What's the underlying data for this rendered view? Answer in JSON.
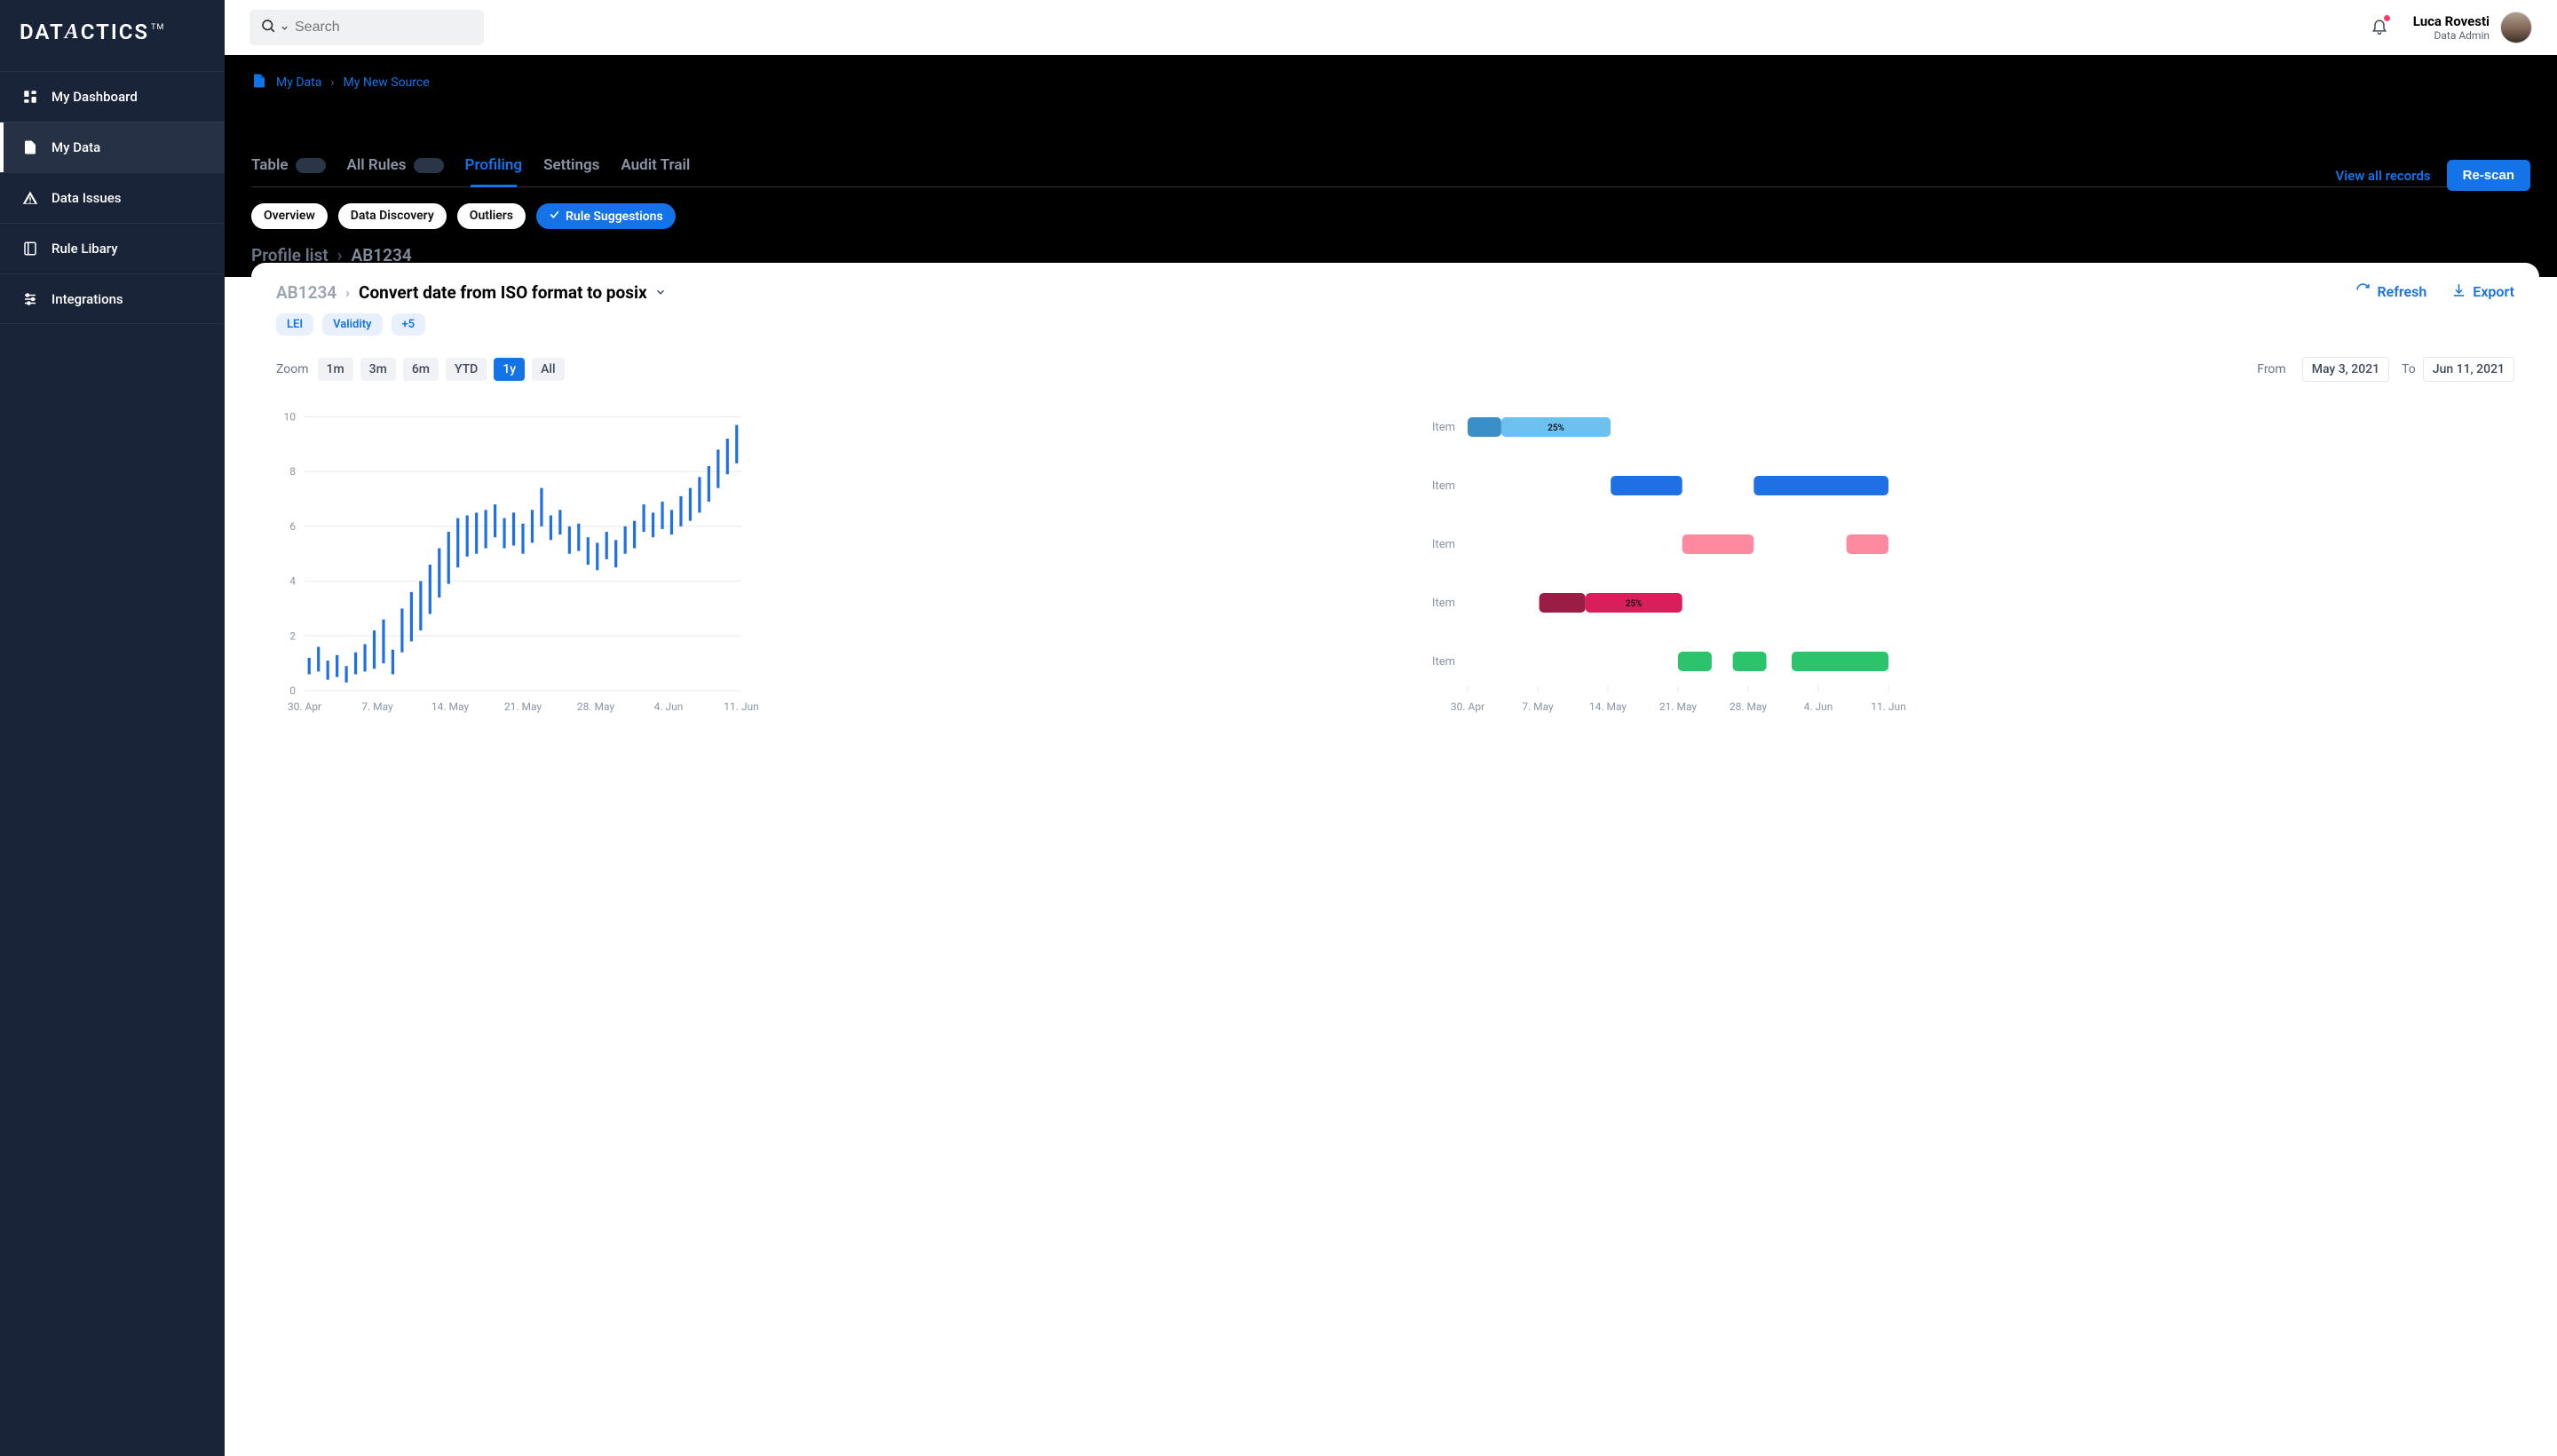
{
  "brand": {
    "name": "DATACTICS",
    "tm": "TM"
  },
  "sidebar": {
    "items": [
      {
        "label": "My Dashboard",
        "icon": "dashboard",
        "active": false
      },
      {
        "label": "My Data",
        "icon": "file",
        "active": true
      },
      {
        "label": "Data Issues",
        "icon": "alert",
        "active": false
      },
      {
        "label": "Rule Libary",
        "icon": "book",
        "active": false
      },
      {
        "label": "Integrations",
        "icon": "tune",
        "active": false
      }
    ]
  },
  "topbar": {
    "search_placeholder": "Search",
    "user_name": "Luca Rovesti",
    "user_role": "Data Admin"
  },
  "breadcrumb": {
    "a": "My Data",
    "b": "My New Source"
  },
  "hdr_actions": {
    "view_all": "View all records",
    "rescan": "Re-scan"
  },
  "tabs": [
    {
      "label": "Table",
      "badge": true,
      "active": false
    },
    {
      "label": "All Rules",
      "badge": true,
      "active": false
    },
    {
      "label": "Profiling",
      "badge": false,
      "active": true
    },
    {
      "label": "Settings",
      "badge": false,
      "active": false
    },
    {
      "label": "Audit Trail",
      "badge": false,
      "active": false
    }
  ],
  "chips": [
    {
      "label": "Overview",
      "active": false
    },
    {
      "label": "Data Discovery",
      "active": false
    },
    {
      "label": "Outliers",
      "active": false
    },
    {
      "label": "Rule Suggestions",
      "active": true
    }
  ],
  "sub_breadcrumb": {
    "a": "Profile list",
    "b": "AB1234"
  },
  "card": {
    "a": "AB1234",
    "title": "Convert date from ISO format to posix",
    "tags": [
      "LEI",
      "Validity",
      "+5"
    ],
    "refresh": "Refresh",
    "export": "Export"
  },
  "controls": {
    "zoom_label": "Zoom",
    "zoom_options": [
      "1m",
      "3m",
      "6m",
      "YTD",
      "1y",
      "All"
    ],
    "zoom_active": "1y",
    "from_label": "From",
    "from": "May 3, 2021",
    "to_label": "To",
    "to": "Jun 11, 2021"
  },
  "chart_left": {
    "type": "stock",
    "x_ticks": [
      "30. Apr",
      "7. May",
      "14. May",
      "21. May",
      "28. May",
      "4. Jun",
      "11. Jun"
    ],
    "y_ticks": [
      0,
      2,
      4,
      6,
      8,
      10
    ],
    "ylim": [
      0,
      10.5
    ],
    "days": 47,
    "series_color": "#1f6fe5",
    "grid_color": "#e6e8ec",
    "axis_text_color": "#8a95a5",
    "data": [
      [
        0.6,
        1.2
      ],
      [
        0.7,
        1.6
      ],
      [
        0.4,
        1.1
      ],
      [
        0.5,
        1.3
      ],
      [
        0.3,
        0.9
      ],
      [
        0.6,
        1.4
      ],
      [
        0.7,
        1.7
      ],
      [
        0.8,
        2.2
      ],
      [
        1.0,
        2.6
      ],
      [
        0.6,
        1.5
      ],
      [
        1.4,
        3.0
      ],
      [
        1.8,
        3.6
      ],
      [
        2.2,
        4.0
      ],
      [
        2.8,
        4.6
      ],
      [
        3.4,
        5.2
      ],
      [
        3.9,
        5.8
      ],
      [
        4.5,
        6.3
      ],
      [
        4.9,
        6.4
      ],
      [
        5.0,
        6.5
      ],
      [
        5.2,
        6.6
      ],
      [
        5.6,
        6.8
      ],
      [
        5.2,
        6.3
      ],
      [
        5.3,
        6.5
      ],
      [
        5.0,
        6.1
      ],
      [
        5.4,
        6.6
      ],
      [
        6.0,
        7.4
      ],
      [
        5.5,
        6.4
      ],
      [
        5.7,
        6.6
      ],
      [
        5.0,
        6.0
      ],
      [
        5.1,
        6.1
      ],
      [
        4.6,
        5.6
      ],
      [
        4.4,
        5.4
      ],
      [
        4.8,
        5.8
      ],
      [
        4.5,
        5.5
      ],
      [
        5.0,
        6.0
      ],
      [
        5.2,
        6.2
      ],
      [
        5.8,
        6.8
      ],
      [
        5.6,
        6.5
      ],
      [
        5.9,
        6.9
      ],
      [
        5.7,
        6.6
      ],
      [
        6.0,
        7.1
      ],
      [
        6.2,
        7.4
      ],
      [
        6.5,
        7.8
      ],
      [
        6.9,
        8.2
      ],
      [
        7.4,
        8.8
      ],
      [
        7.9,
        9.2
      ],
      [
        8.3,
        9.7
      ]
    ]
  },
  "chart_right": {
    "type": "range-bar",
    "x_ticks": [
      "30. Apr",
      "7. May",
      "14. May",
      "21. May",
      "28. May",
      "4. Jun",
      "11. Jun"
    ],
    "item_label": "Item",
    "axis_text_color": "#8a95a5",
    "grid_color": "#e6e8ec",
    "rows": [
      {
        "label": "Item",
        "bars": [
          {
            "x0": 0.0,
            "x1": 0.08,
            "color": "#3a8fc8",
            "text": ""
          },
          {
            "x0": 0.08,
            "x1": 0.34,
            "color": "#6cc1ee",
            "text": "25%"
          }
        ]
      },
      {
        "label": "Item",
        "bars": [
          {
            "x0": 0.34,
            "x1": 0.51,
            "color": "#1f6fe5",
            "text": ""
          },
          {
            "x0": 0.68,
            "x1": 1.0,
            "color": "#1f6fe5",
            "text": ""
          }
        ]
      },
      {
        "label": "Item",
        "bars": [
          {
            "x0": 0.51,
            "x1": 0.68,
            "color": "#ff8aa0",
            "text": ""
          },
          {
            "x0": 0.9,
            "x1": 1.0,
            "color": "#ff8aa0",
            "text": ""
          }
        ]
      },
      {
        "label": "Item",
        "bars": [
          {
            "x0": 0.17,
            "x1": 0.28,
            "color": "#9a1d45",
            "text": ""
          },
          {
            "x0": 0.28,
            "x1": 0.51,
            "color": "#d81e5b",
            "text": "25%"
          }
        ]
      },
      {
        "label": "Item",
        "bars": [
          {
            "x0": 0.5,
            "x1": 0.58,
            "color": "#2bc36b",
            "text": ""
          },
          {
            "x0": 0.63,
            "x1": 0.71,
            "color": "#2bc36b",
            "text": ""
          },
          {
            "x0": 0.77,
            "x1": 1.0,
            "color": "#2bc36b",
            "text": ""
          }
        ]
      }
    ]
  }
}
